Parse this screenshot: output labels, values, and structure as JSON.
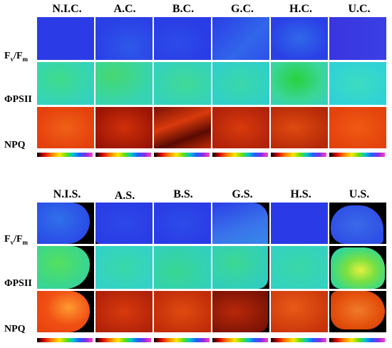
{
  "colors": {
    "fvfm": "#2a3ae6",
    "fvfm_alt": "#2e55e8",
    "phipsii": "#33d6b2",
    "phipsii_green": "#3ed86c",
    "npq": "#e8400c",
    "npq_dark": "#a81a05",
    "background": "#000000"
  },
  "top_panel": {
    "columns": [
      "N.I.C.",
      "A.C.",
      "B.C.",
      "G.C.",
      "H.C.",
      "U.C."
    ],
    "row_labels": {
      "fvfm_main": "F",
      "fvfm_v": "v",
      "fvfm_sep": "/F",
      "fvfm_m": "m",
      "phipsii": "ΦPSII",
      "npq": "NPQ"
    }
  },
  "bottom_panel": {
    "columns": [
      "N.I.S.",
      "A.S.",
      "B.S.",
      "G.S.",
      "H.S.",
      "U.S."
    ],
    "row_labels": {
      "fvfm_main": "F",
      "fvfm_v": "v",
      "fvfm_sep": "/F",
      "fvfm_m": "m",
      "phipsii": "ΦPSII",
      "npq": "NPQ"
    }
  }
}
